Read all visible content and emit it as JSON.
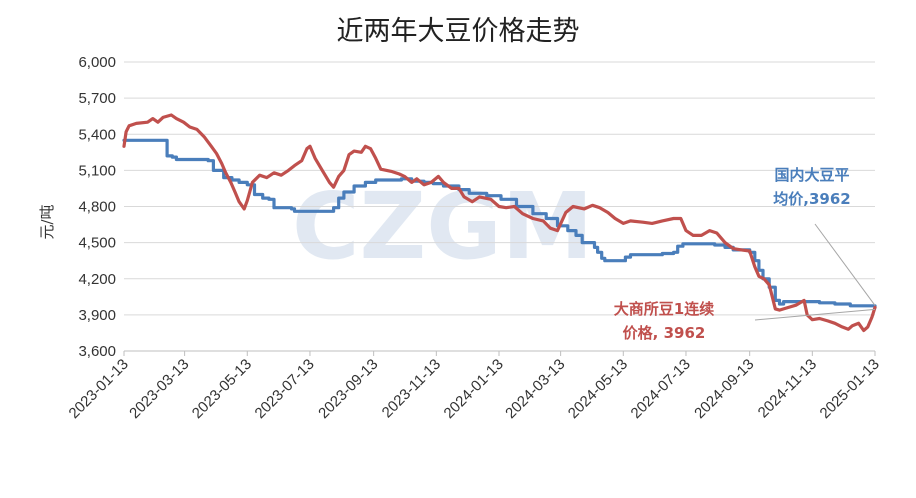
{
  "chart_data": {
    "type": "line",
    "title": "近两年大豆价格走势",
    "ylabel": "元/吨",
    "xlabel": "",
    "ylim": [
      3600,
      6000
    ],
    "yticks": [
      3600,
      3900,
      4200,
      4500,
      4800,
      5100,
      5400,
      5700,
      6000
    ],
    "ytick_labels": [
      "3,600",
      "3,900",
      "4,200",
      "4,500",
      "4,800",
      "5,100",
      "5,400",
      "5,700",
      "6,000"
    ],
    "xlim": [
      "2023-01-13",
      "2025-01-13"
    ],
    "xtick_labels": [
      "2023-01-13",
      "2023-03-13",
      "2023-05-13",
      "2023-07-13",
      "2023-09-13",
      "2023-11-13",
      "2024-01-13",
      "2024-03-13",
      "2024-05-13",
      "2024-07-13",
      "2024-09-13",
      "2024-11-13",
      "2025-01-13"
    ],
    "grid": true,
    "watermark": "CZGM",
    "series": [
      {
        "name": "国内大豆平均价",
        "color": "#4a7ebb",
        "points": [
          [
            "2023-01-13",
            5350
          ],
          [
            "2023-02-22",
            5350
          ],
          [
            "2023-02-24",
            5220
          ],
          [
            "2023-03-01",
            5210
          ],
          [
            "2023-03-05",
            5190
          ],
          [
            "2023-04-05",
            5180
          ],
          [
            "2023-04-10",
            5100
          ],
          [
            "2023-04-20",
            5040
          ],
          [
            "2023-04-28",
            5020
          ],
          [
            "2023-05-05",
            5000
          ],
          [
            "2023-05-13",
            4980
          ],
          [
            "2023-05-20",
            4900
          ],
          [
            "2023-05-28",
            4870
          ],
          [
            "2023-06-03",
            4860
          ],
          [
            "2023-06-08",
            4790
          ],
          [
            "2023-06-25",
            4780
          ],
          [
            "2023-06-28",
            4760
          ],
          [
            "2023-07-30",
            4760
          ],
          [
            "2023-08-05",
            4790
          ],
          [
            "2023-08-10",
            4870
          ],
          [
            "2023-08-15",
            4920
          ],
          [
            "2023-08-25",
            4970
          ],
          [
            "2023-09-05",
            5000
          ],
          [
            "2023-09-15",
            5020
          ],
          [
            "2023-10-10",
            5030
          ],
          [
            "2023-10-20",
            5010
          ],
          [
            "2023-11-01",
            5000
          ],
          [
            "2023-11-10",
            4990
          ],
          [
            "2023-11-20",
            4970
          ],
          [
            "2023-12-05",
            4940
          ],
          [
            "2023-12-15",
            4910
          ],
          [
            "2024-01-01",
            4890
          ],
          [
            "2024-01-15",
            4860
          ],
          [
            "2024-01-30",
            4800
          ],
          [
            "2024-02-15",
            4740
          ],
          [
            "2024-02-28",
            4700
          ],
          [
            "2024-03-10",
            4640
          ],
          [
            "2024-03-20",
            4600
          ],
          [
            "2024-03-28",
            4560
          ],
          [
            "2024-04-03",
            4500
          ],
          [
            "2024-04-15",
            4460
          ],
          [
            "2024-04-18",
            4420
          ],
          [
            "2024-04-22",
            4370
          ],
          [
            "2024-04-25",
            4350
          ],
          [
            "2024-05-10",
            4350
          ],
          [
            "2024-05-15",
            4380
          ],
          [
            "2024-05-20",
            4400
          ],
          [
            "2024-06-10",
            4400
          ],
          [
            "2024-06-20",
            4410
          ],
          [
            "2024-07-01",
            4420
          ],
          [
            "2024-07-05",
            4470
          ],
          [
            "2024-07-10",
            4490
          ],
          [
            "2024-08-10",
            4480
          ],
          [
            "2024-08-20",
            4460
          ],
          [
            "2024-08-28",
            4440
          ],
          [
            "2024-09-13",
            4420
          ],
          [
            "2024-09-18",
            4350
          ],
          [
            "2024-09-22",
            4270
          ],
          [
            "2024-09-26",
            4200
          ],
          [
            "2024-10-02",
            4130
          ],
          [
            "2024-10-08",
            4020
          ],
          [
            "2024-10-12",
            3990
          ],
          [
            "2024-10-16",
            4010
          ],
          [
            "2024-11-01",
            4010
          ],
          [
            "2024-11-20",
            4000
          ],
          [
            "2024-12-05",
            3990
          ],
          [
            "2024-12-20",
            3975
          ],
          [
            "2025-01-13",
            3962
          ]
        ]
      },
      {
        "name": "大商所豆1连续价格",
        "color": "#c0504d",
        "points": [
          [
            "2023-01-13",
            5300
          ],
          [
            "2023-01-15",
            5420
          ],
          [
            "2023-01-18",
            5470
          ],
          [
            "2023-01-25",
            5490
          ],
          [
            "2023-02-05",
            5500
          ],
          [
            "2023-02-10",
            5530
          ],
          [
            "2023-02-15",
            5500
          ],
          [
            "2023-02-20",
            5540
          ],
          [
            "2023-02-28",
            5560
          ],
          [
            "2023-03-05",
            5530
          ],
          [
            "2023-03-12",
            5500
          ],
          [
            "2023-03-18",
            5460
          ],
          [
            "2023-03-25",
            5440
          ],
          [
            "2023-04-01",
            5380
          ],
          [
            "2023-04-08",
            5300
          ],
          [
            "2023-04-13",
            5240
          ],
          [
            "2023-04-18",
            5160
          ],
          [
            "2023-04-22",
            5080
          ],
          [
            "2023-04-27",
            5000
          ],
          [
            "2023-05-01",
            4920
          ],
          [
            "2023-05-05",
            4840
          ],
          [
            "2023-05-10",
            4780
          ],
          [
            "2023-05-13",
            4850
          ],
          [
            "2023-05-18",
            5000
          ],
          [
            "2023-05-25",
            5060
          ],
          [
            "2023-06-01",
            5040
          ],
          [
            "2023-06-08",
            5080
          ],
          [
            "2023-06-15",
            5060
          ],
          [
            "2023-06-22",
            5100
          ],
          [
            "2023-06-28",
            5140
          ],
          [
            "2023-07-05",
            5180
          ],
          [
            "2023-07-10",
            5280
          ],
          [
            "2023-07-13",
            5300
          ],
          [
            "2023-07-18",
            5200
          ],
          [
            "2023-07-25",
            5100
          ],
          [
            "2023-08-01",
            5000
          ],
          [
            "2023-08-05",
            4960
          ],
          [
            "2023-08-10",
            5050
          ],
          [
            "2023-08-15",
            5100
          ],
          [
            "2023-08-20",
            5230
          ],
          [
            "2023-08-25",
            5260
          ],
          [
            "2023-09-01",
            5250
          ],
          [
            "2023-09-05",
            5300
          ],
          [
            "2023-09-10",
            5280
          ],
          [
            "2023-09-15",
            5200
          ],
          [
            "2023-09-20",
            5110
          ],
          [
            "2023-10-01",
            5090
          ],
          [
            "2023-10-08",
            5070
          ],
          [
            "2023-10-13",
            5050
          ],
          [
            "2023-10-20",
            5000
          ],
          [
            "2023-10-25",
            5030
          ],
          [
            "2023-11-01",
            4980
          ],
          [
            "2023-11-08",
            5000
          ],
          [
            "2023-11-15",
            5050
          ],
          [
            "2023-11-20",
            5000
          ],
          [
            "2023-11-28",
            4950
          ],
          [
            "2023-12-05",
            4950
          ],
          [
            "2023-12-10",
            4880
          ],
          [
            "2023-12-18",
            4840
          ],
          [
            "2023-12-25",
            4880
          ],
          [
            "2024-01-05",
            4860
          ],
          [
            "2024-01-13",
            4800
          ],
          [
            "2024-01-20",
            4790
          ],
          [
            "2024-01-28",
            4800
          ],
          [
            "2024-02-05",
            4740
          ],
          [
            "2024-02-15",
            4700
          ],
          [
            "2024-02-25",
            4680
          ],
          [
            "2024-03-03",
            4620
          ],
          [
            "2024-03-10",
            4600
          ],
          [
            "2024-03-18",
            4750
          ],
          [
            "2024-03-25",
            4800
          ],
          [
            "2024-04-05",
            4780
          ],
          [
            "2024-04-13",
            4810
          ],
          [
            "2024-04-20",
            4790
          ],
          [
            "2024-04-28",
            4750
          ],
          [
            "2024-05-05",
            4700
          ],
          [
            "2024-05-13",
            4660
          ],
          [
            "2024-05-20",
            4680
          ],
          [
            "2024-06-01",
            4670
          ],
          [
            "2024-06-10",
            4660
          ],
          [
            "2024-06-20",
            4680
          ],
          [
            "2024-07-01",
            4700
          ],
          [
            "2024-07-08",
            4700
          ],
          [
            "2024-07-13",
            4600
          ],
          [
            "2024-07-20",
            4560
          ],
          [
            "2024-07-28",
            4560
          ],
          [
            "2024-08-05",
            4600
          ],
          [
            "2024-08-12",
            4580
          ],
          [
            "2024-08-20",
            4500
          ],
          [
            "2024-08-28",
            4450
          ],
          [
            "2024-09-05",
            4440
          ],
          [
            "2024-09-13",
            4430
          ],
          [
            "2024-09-18",
            4300
          ],
          [
            "2024-09-22",
            4220
          ],
          [
            "2024-09-27",
            4200
          ],
          [
            "2024-10-02",
            4150
          ],
          [
            "2024-10-05",
            4050
          ],
          [
            "2024-10-08",
            3950
          ],
          [
            "2024-10-12",
            3940
          ],
          [
            "2024-10-20",
            3960
          ],
          [
            "2024-10-28",
            3980
          ],
          [
            "2024-11-05",
            4020
          ],
          [
            "2024-11-08",
            3900
          ],
          [
            "2024-11-13",
            3860
          ],
          [
            "2024-11-20",
            3870
          ],
          [
            "2024-11-28",
            3850
          ],
          [
            "2024-12-05",
            3830
          ],
          [
            "2024-12-12",
            3800
          ],
          [
            "2024-12-18",
            3780
          ],
          [
            "2024-12-22",
            3810
          ],
          [
            "2024-12-28",
            3830
          ],
          [
            "2025-01-02",
            3770
          ],
          [
            "2025-01-06",
            3800
          ],
          [
            "2025-01-10",
            3880
          ],
          [
            "2025-01-13",
            3962
          ]
        ]
      }
    ],
    "annotations": [
      {
        "series": "国内大豆平均价",
        "lines": [
          "国内大豆平",
          "均价,3962"
        ],
        "color": "#4a7ebb"
      },
      {
        "series": "大商所豆1连续价格",
        "lines": [
          "大商所豆1连续",
          "价格, 3962"
        ],
        "color": "#c0504d"
      }
    ]
  }
}
